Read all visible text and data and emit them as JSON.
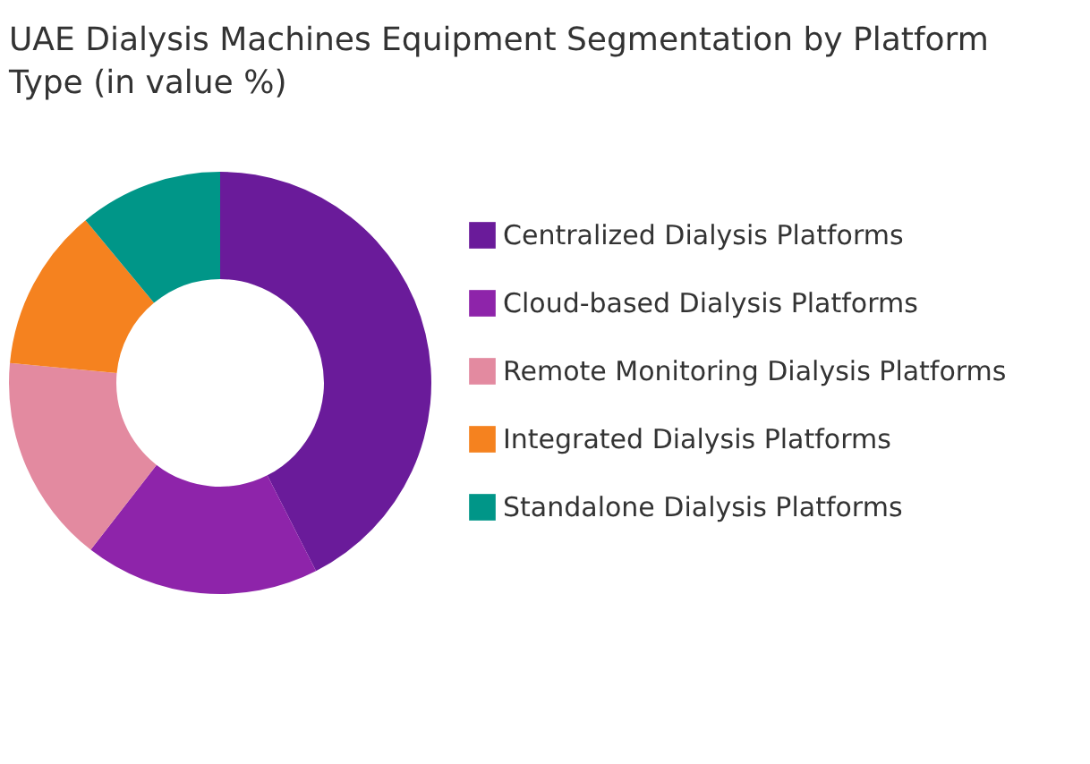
{
  "chart_data": {
    "type": "donut",
    "title": "UAE Dialysis Machines Equipment Segmentation by Platform Type (in value %)",
    "categories": [
      "Centralized Dialysis Platforms",
      "Cloud-based Dialysis Platforms",
      "Remote Monitoring Dialysis Platforms",
      "Integrated Dialysis Platforms",
      "Standalone Dialysis Platforms"
    ],
    "values": [
      42.5,
      18,
      16,
      12.5,
      11
    ],
    "colors": [
      "#6a1b9a",
      "#8e24aa",
      "#e38aa0",
      "#f5821f",
      "#009688"
    ],
    "legend": "right"
  }
}
